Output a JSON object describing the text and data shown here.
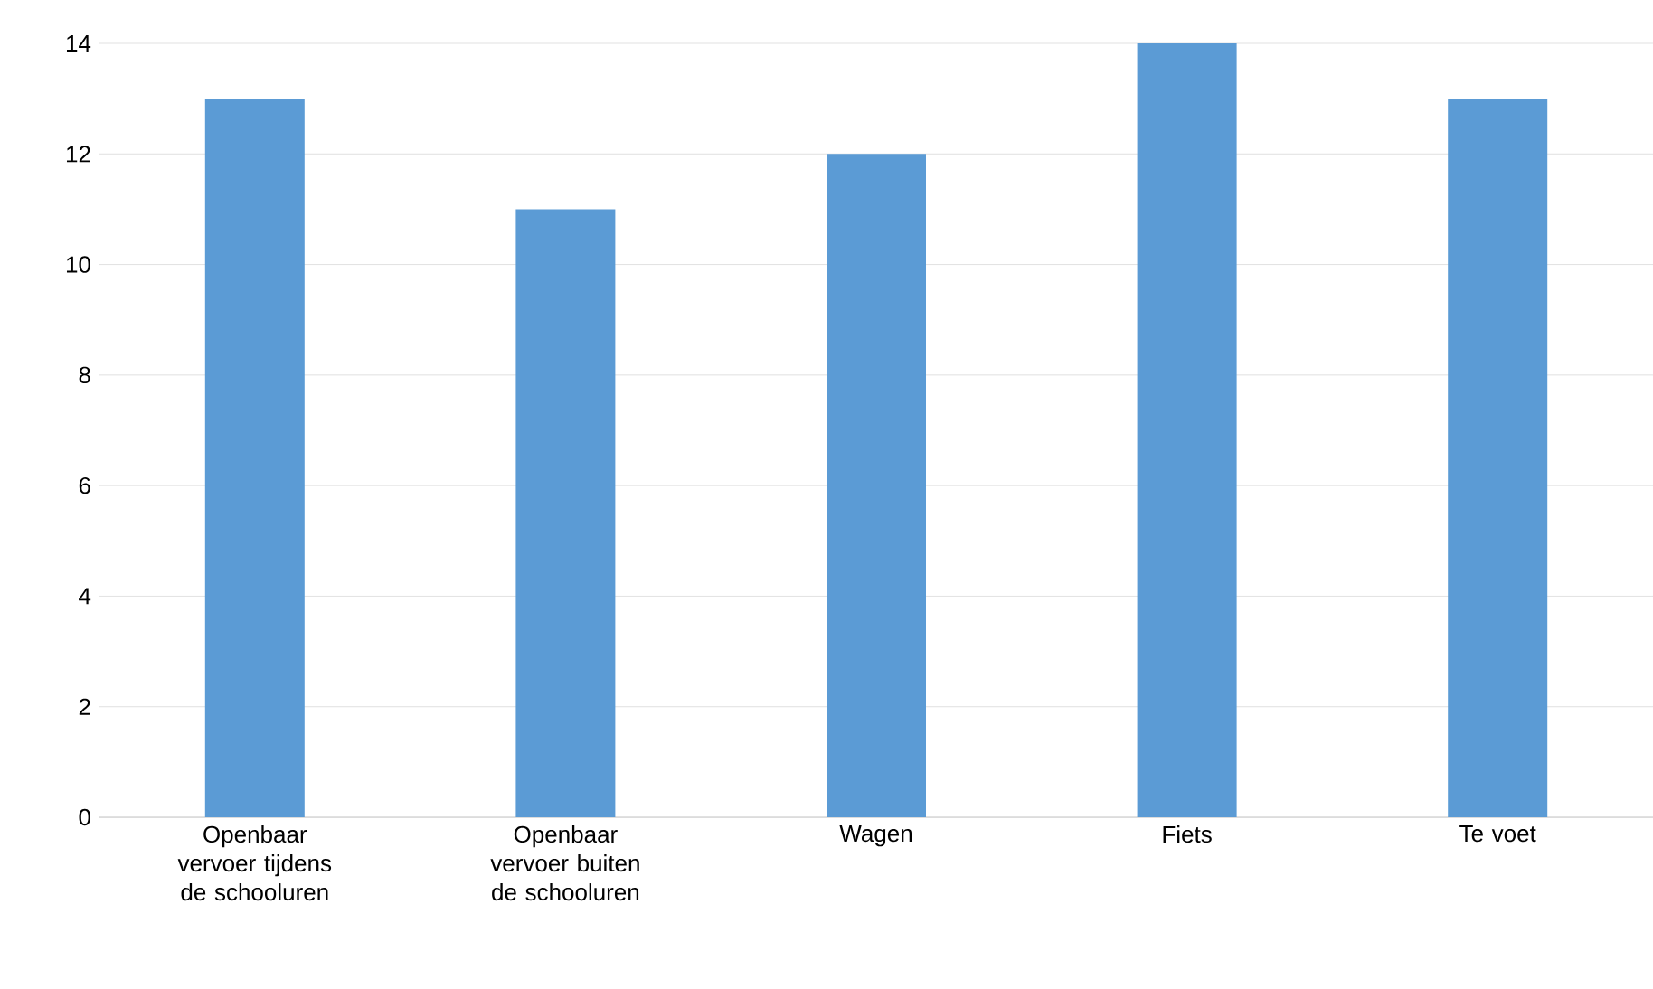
{
  "chart_data": {
    "type": "bar",
    "categories": [
      "Openbaar vervoer tijdens de schooluren",
      "Openbaar vervoer buiten de schooluren",
      "Wagen",
      "Fiets",
      "Te voet"
    ],
    "values": [
      13,
      11,
      12,
      14,
      13
    ],
    "color": "#5b9bd5",
    "ylim": [
      0,
      14
    ],
    "yticks": [
      0,
      2,
      4,
      6,
      8,
      10,
      12,
      14
    ],
    "grid": "y"
  }
}
